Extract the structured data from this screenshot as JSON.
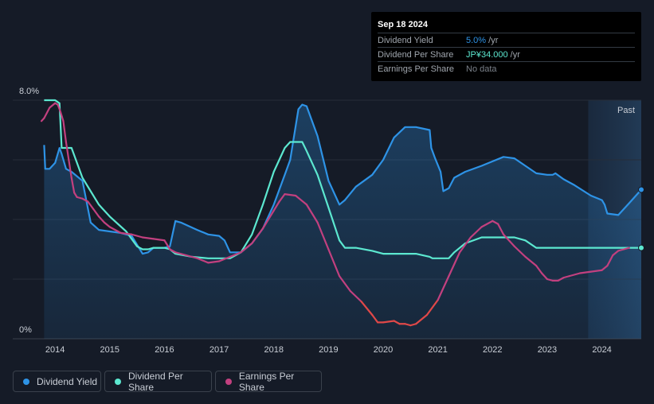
{
  "tooltip": {
    "date": "Sep 18 2024",
    "rows": [
      {
        "label": "Dividend Yield",
        "value": "5.0%",
        "unit": " /yr",
        "color": "#2e93e6"
      },
      {
        "label": "Dividend Per Share",
        "value": "JP¥34.000",
        "unit": " /yr",
        "color": "#5ce8d0"
      },
      {
        "label": "Earnings Per Share",
        "value": "No data",
        "unit": "",
        "color": "#7a8089"
      }
    ]
  },
  "legend": [
    {
      "label": "Dividend Yield",
      "color": "#2e93e6"
    },
    {
      "label": "Dividend Per Share",
      "color": "#5ce8d0"
    },
    {
      "label": "Earnings Per Share",
      "color": "#c2407f"
    }
  ],
  "chart_data": {
    "type": "line",
    "past_label": "Past",
    "y_tick_labels": [
      "8.0%",
      "0%"
    ],
    "ylim": [
      0,
      8
    ],
    "xlim": [
      2013.75,
      2024.72
    ],
    "x_tick_labels": [
      "2014",
      "2015",
      "2016",
      "2017",
      "2018",
      "2019",
      "2020",
      "2021",
      "2022",
      "2023",
      "2024"
    ],
    "x_tick_values": [
      2014,
      2015,
      2016,
      2017,
      2018,
      2019,
      2020,
      2021,
      2022,
      2023,
      2024
    ],
    "past_start": 2023.75,
    "series": [
      {
        "name": "Dividend Yield",
        "color": "#2e93e6",
        "area": true,
        "x": [
          2013.8,
          2013.82,
          2013.9,
          2014.0,
          2014.08,
          2014.12,
          2014.2,
          2014.3,
          2014.5,
          2014.65,
          2014.8,
          2015.0,
          2015.2,
          2015.4,
          2015.6,
          2015.7,
          2015.8,
          2016.0,
          2016.1,
          2016.2,
          2016.3,
          2016.6,
          2016.8,
          2017.0,
          2017.1,
          2017.2,
          2017.4,
          2017.6,
          2017.8,
          2018.0,
          2018.2,
          2018.3,
          2018.45,
          2018.52,
          2018.6,
          2018.8,
          2019.0,
          2019.2,
          2019.3,
          2019.5,
          2019.8,
          2020.0,
          2020.2,
          2020.4,
          2020.6,
          2020.85,
          2020.88,
          2020.95,
          2021.05,
          2021.1,
          2021.2,
          2021.3,
          2021.5,
          2021.8,
          2022.0,
          2022.2,
          2022.4,
          2022.6,
          2022.8,
          2023.0,
          2023.1,
          2023.15,
          2023.3,
          2023.5,
          2023.8,
          2024.0,
          2024.05,
          2024.1,
          2024.3,
          2024.5,
          2024.72
        ],
        "y": [
          6.5,
          5.7,
          5.7,
          5.9,
          6.4,
          6.2,
          5.7,
          5.6,
          5.3,
          3.9,
          3.65,
          3.6,
          3.55,
          3.45,
          2.85,
          2.9,
          3.05,
          3.05,
          3.1,
          3.95,
          3.9,
          3.65,
          3.5,
          3.45,
          3.3,
          2.9,
          2.9,
          3.2,
          3.7,
          4.5,
          5.5,
          6.0,
          7.7,
          7.85,
          7.8,
          6.8,
          5.3,
          4.5,
          4.65,
          5.1,
          5.5,
          6.0,
          6.75,
          7.1,
          7.1,
          7.0,
          6.4,
          6.05,
          5.6,
          4.95,
          5.05,
          5.4,
          5.6,
          5.8,
          5.95,
          6.1,
          6.05,
          5.8,
          5.55,
          5.5,
          5.5,
          5.55,
          5.35,
          5.15,
          4.8,
          4.65,
          4.5,
          4.2,
          4.15,
          4.55,
          5.0
        ]
      },
      {
        "name": "Dividend Per Share",
        "color": "#5ce8d0",
        "area": false,
        "x": [
          2013.8,
          2014.0,
          2014.08,
          2014.12,
          2014.3,
          2014.5,
          2014.8,
          2015.0,
          2015.3,
          2015.5,
          2015.6,
          2015.7,
          2015.8,
          2016.0,
          2016.1,
          2016.2,
          2016.5,
          2016.8,
          2017.0,
          2017.2,
          2017.4,
          2017.6,
          2017.8,
          2018.0,
          2018.2,
          2018.3,
          2018.45,
          2018.52,
          2018.6,
          2018.8,
          2019.0,
          2019.2,
          2019.3,
          2019.5,
          2019.8,
          2020.0,
          2020.2,
          2020.4,
          2020.6,
          2020.85,
          2020.9,
          2021.0,
          2021.2,
          2021.3,
          2021.5,
          2021.8,
          2022.0,
          2022.2,
          2022.4,
          2022.6,
          2022.8,
          2023.0,
          2023.5,
          2024.0,
          2024.5,
          2024.72
        ],
        "y": [
          8.0,
          8.0,
          7.9,
          6.4,
          6.4,
          5.4,
          4.5,
          4.1,
          3.6,
          3.1,
          3.0,
          3.0,
          3.05,
          3.05,
          3.0,
          2.85,
          2.75,
          2.7,
          2.7,
          2.7,
          2.9,
          3.5,
          4.5,
          5.6,
          6.4,
          6.6,
          6.6,
          6.6,
          6.3,
          5.5,
          4.4,
          3.3,
          3.05,
          3.05,
          2.95,
          2.85,
          2.85,
          2.85,
          2.85,
          2.75,
          2.7,
          2.7,
          2.7,
          2.9,
          3.2,
          3.4,
          3.4,
          3.4,
          3.4,
          3.3,
          3.05,
          3.05,
          3.05,
          3.05,
          3.05,
          3.05
        ]
      },
      {
        "name": "Earnings Per Share",
        "color": "#c2407f",
        "low_color": "#e04848",
        "low_threshold": 1.3,
        "area": false,
        "x": [
          2013.75,
          2013.8,
          2013.9,
          2014.0,
          2014.05,
          2014.1,
          2014.15,
          2014.2,
          2014.25,
          2014.3,
          2014.35,
          2014.4,
          2014.5,
          2014.6,
          2014.7,
          2014.8,
          2014.9,
          2015.0,
          2015.2,
          2015.4,
          2015.6,
          2015.8,
          2016.0,
          2016.1,
          2016.2,
          2016.4,
          2016.6,
          2016.8,
          2017.0,
          2017.2,
          2017.4,
          2017.6,
          2017.8,
          2018.0,
          2018.1,
          2018.2,
          2018.4,
          2018.6,
          2018.8,
          2019.0,
          2019.2,
          2019.4,
          2019.6,
          2019.8,
          2019.9,
          2020.0,
          2020.2,
          2020.3,
          2020.4,
          2020.5,
          2020.6,
          2020.8,
          2021.0,
          2021.2,
          2021.4,
          2021.6,
          2021.8,
          2022.0,
          2022.1,
          2022.2,
          2022.4,
          2022.6,
          2022.8,
          2022.9,
          2023.0,
          2023.1,
          2023.2,
          2023.3,
          2023.4,
          2023.6,
          2023.8,
          2024.0,
          2024.1,
          2024.2,
          2024.3,
          2024.5
        ],
        "y": [
          7.3,
          7.4,
          7.75,
          7.9,
          7.85,
          7.6,
          7.3,
          6.6,
          6.0,
          5.4,
          4.9,
          4.75,
          4.7,
          4.6,
          4.35,
          4.1,
          3.9,
          3.75,
          3.55,
          3.5,
          3.4,
          3.35,
          3.3,
          3.0,
          2.9,
          2.8,
          2.7,
          2.55,
          2.6,
          2.75,
          2.9,
          3.2,
          3.7,
          4.3,
          4.6,
          4.85,
          4.8,
          4.5,
          3.9,
          3.0,
          2.1,
          1.6,
          1.25,
          0.8,
          0.55,
          0.55,
          0.6,
          0.5,
          0.5,
          0.45,
          0.5,
          0.8,
          1.3,
          2.1,
          2.9,
          3.4,
          3.75,
          3.95,
          3.85,
          3.5,
          3.1,
          2.75,
          2.45,
          2.2,
          2.0,
          1.95,
          1.95,
          2.05,
          2.1,
          2.2,
          2.25,
          2.3,
          2.45,
          2.8,
          2.95,
          3.05
        ]
      }
    ]
  }
}
